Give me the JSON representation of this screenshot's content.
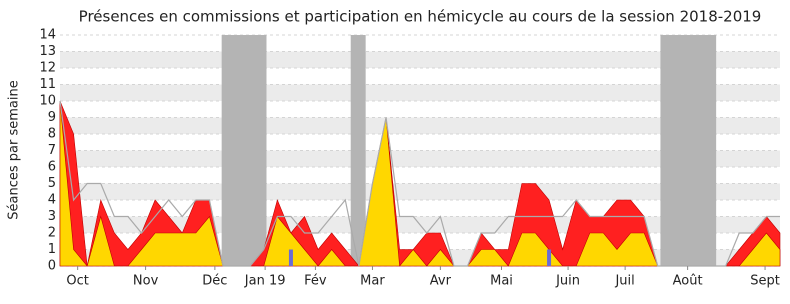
{
  "chart_data": {
    "type": "area",
    "title": "Présences en commissions et participation en hémicycle au cours de la session 2018-2019",
    "y_label": "Séances par semaine",
    "x": [
      0,
      1,
      2,
      3,
      4,
      5,
      6,
      7,
      8,
      9,
      10,
      11,
      12,
      13,
      14,
      15,
      16,
      17,
      18,
      19,
      20,
      21,
      22,
      23,
      24,
      25,
      26,
      27,
      28,
      29,
      30,
      31,
      32,
      33,
      34,
      35,
      36,
      37,
      38,
      39,
      40,
      41,
      42,
      43,
      44,
      45,
      46,
      47,
      48,
      49,
      50,
      51,
      52,
      53
    ],
    "xlim": [
      0,
      53
    ],
    "xticks": [
      {
        "value": 1.3,
        "label": "Oct"
      },
      {
        "value": 6.3,
        "label": "Nov"
      },
      {
        "value": 11.4,
        "label": "Déc"
      },
      {
        "value": 15.1,
        "label": "Jan 19"
      },
      {
        "value": 18.8,
        "label": "Fév"
      },
      {
        "value": 23,
        "label": "Mar"
      },
      {
        "value": 28,
        "label": "Avr"
      },
      {
        "value": 32.5,
        "label": "Mai"
      },
      {
        "value": 37.4,
        "label": "Juin"
      },
      {
        "value": 41.6,
        "label": "Juil"
      },
      {
        "value": 46.2,
        "label": "Août"
      },
      {
        "value": 51.9,
        "label": "Sept"
      }
    ],
    "ylim": [
      0,
      14
    ],
    "yticks": [
      0,
      1,
      2,
      3,
      4,
      5,
      6,
      7,
      8,
      9,
      10,
      11,
      12,
      13,
      14
    ],
    "grid": true,
    "vacations": [
      [
        11.9,
        15.2
      ],
      [
        21.4,
        22.5
      ],
      [
        44.2,
        48.3
      ]
    ],
    "vacation_color": "#b4b4b4",
    "series": [
      {
        "kind": "area",
        "color": "#ff2020",
        "values": [
          10,
          8,
          0,
          4,
          2,
          1,
          2,
          4,
          3,
          2,
          4,
          4,
          0,
          0,
          0,
          1,
          4,
          2,
          3,
          1,
          2,
          1,
          0,
          5,
          9,
          1,
          1,
          2,
          2,
          0,
          0,
          2,
          1,
          1,
          5,
          5,
          4,
          1,
          4,
          3,
          3,
          4,
          4,
          3,
          0,
          0,
          0,
          0,
          0,
          0,
          1,
          2,
          3,
          2
        ]
      },
      {
        "kind": "area",
        "color": "#ffd700",
        "values": [
          10,
          1,
          0,
          3,
          0,
          0,
          1,
          2,
          2,
          2,
          2,
          3,
          0,
          0,
          0,
          0,
          3,
          2,
          1,
          0,
          1,
          0,
          0,
          5,
          9,
          0,
          1,
          0,
          1,
          0,
          0,
          1,
          1,
          0,
          2,
          2,
          1,
          0,
          0,
          2,
          2,
          1,
          2,
          2,
          0,
          0,
          0,
          0,
          0,
          0,
          0,
          1,
          2,
          1
        ]
      },
      {
        "kind": "line",
        "color": "#aaaaaa",
        "values": [
          10,
          4,
          5,
          5,
          3,
          3,
          2,
          3,
          4,
          3,
          4,
          4,
          0,
          0,
          0,
          1,
          3,
          3,
          2,
          2,
          3,
          4,
          0,
          5,
          9,
          3,
          3,
          2,
          3,
          0,
          0,
          2,
          2,
          3,
          3,
          3,
          3,
          3,
          4,
          3,
          3,
          3,
          3,
          3,
          0,
          0,
          0,
          0,
          0,
          0,
          2,
          2,
          3,
          3
        ]
      }
    ],
    "bars": {
      "color": "#6b6bd6",
      "x": [
        17,
        36
      ],
      "values": [
        1,
        1
      ]
    }
  }
}
